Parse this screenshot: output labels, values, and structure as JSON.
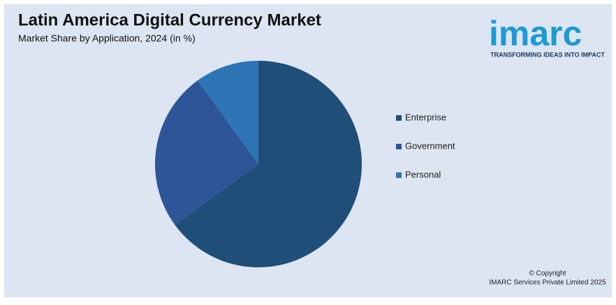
{
  "chart_data": {
    "type": "pie",
    "title": "Latin America Digital Currency Market",
    "subtitle": "Market Share by Application, 2024 (in %)",
    "categories": [
      "Enterprise",
      "Government",
      "Personal"
    ],
    "values": [
      65,
      25,
      10
    ],
    "colors": [
      "#1f4e79",
      "#2e5597",
      "#2e75b6"
    ],
    "legend": "right"
  },
  "logo": {
    "name": "imarc",
    "tagline": "TRANSFORMING IDEAS INTO IMPACT"
  },
  "footer": {
    "copyright": "© Copyright",
    "owner": "IMARC Services Private Limited 2025"
  }
}
